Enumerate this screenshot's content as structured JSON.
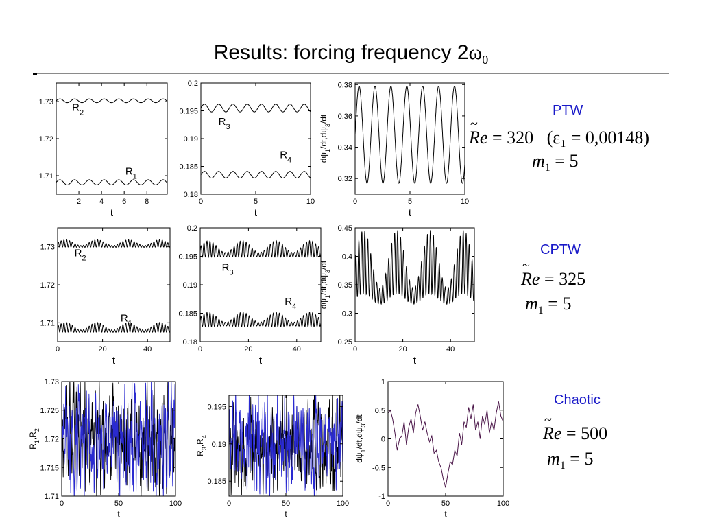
{
  "slide": {
    "title_text": "Results: forcing frequency 2",
    "title_symbol": "ω",
    "title_subscript": "0"
  },
  "regimes": [
    {
      "label": "PTW",
      "re_value": "320",
      "eps_text": "(ε₁ = 0,00148)",
      "m_value": "5"
    },
    {
      "label": "CPTW",
      "re_value": "325",
      "eps_text": "",
      "m_value": "5"
    },
    {
      "label": "Chaotic",
      "re_value": "500",
      "eps_text": "",
      "m_value": "5"
    }
  ],
  "eq_labels": {
    "re_symbol": "Re",
    "equals": "=",
    "m_symbol": "m",
    "m_sub": "1"
  },
  "colors": {
    "black_line": "#000000",
    "blue_line": "#2a2ad0",
    "purple_line": "#4a1548",
    "regime_label": "#1919c8"
  },
  "chart_data": [
    {
      "type": "line",
      "row": 1,
      "col": 1,
      "xlabel": "t",
      "ylabel": "",
      "xlim": [
        0,
        9.8
      ],
      "ylim": [
        1.705,
        1.735
      ],
      "xticks": [
        2,
        4,
        6,
        8
      ],
      "yticks": [
        1.71,
        1.72,
        1.73
      ],
      "ytick_labels": [
        "1.71",
        "1.72",
        "1.73"
      ],
      "series": [
        {
          "name": "R2",
          "color": "black",
          "kind": "sine",
          "center": 1.7302,
          "amp": 0.0005,
          "period": 1.3,
          "amp2": 0,
          "period2": 1
        },
        {
          "name": "R1",
          "color": "black",
          "kind": "sine",
          "center": 1.7082,
          "amp": 0.0007,
          "period": 1.3,
          "amp2": 0,
          "period2": 1
        }
      ],
      "annotations": [
        {
          "main": "R",
          "sub": "2",
          "x": 1.4,
          "y": 1.7275
        },
        {
          "main": "R",
          "sub": "1",
          "x": 6.1,
          "y": 1.7103
        }
      ]
    },
    {
      "type": "line",
      "row": 1,
      "col": 2,
      "xlabel": "t",
      "ylabel": "",
      "xlim": [
        0,
        10
      ],
      "ylim": [
        0.18,
        0.2
      ],
      "xticks": [
        0,
        5,
        10
      ],
      "yticks": [
        0.18,
        0.185,
        0.19,
        0.195,
        0.2
      ],
      "ytick_labels": [
        "0.18",
        "0.185",
        "0.19",
        "0.195",
        "0.2"
      ],
      "series": [
        {
          "name": "R3",
          "color": "black",
          "kind": "sine",
          "center": 0.1955,
          "amp": 0.0007,
          "period": 1.3,
          "amp2": 0,
          "period2": 1
        },
        {
          "name": "R4",
          "color": "black",
          "kind": "sine",
          "center": 0.1835,
          "amp": 0.0006,
          "period": 1.3,
          "amp2": 0,
          "period2": 1
        }
      ],
      "annotations": [
        {
          "main": "R",
          "sub": "3",
          "x": 1.6,
          "y": 0.1925
        },
        {
          "main": "R",
          "sub": "4",
          "x": 7.2,
          "y": 0.1865
        }
      ]
    },
    {
      "type": "line",
      "row": 1,
      "col": 3,
      "xlabel": "t",
      "ylabel": "dψ1/dt,dψ3/dt",
      "xlim": [
        0,
        10
      ],
      "ylim": [
        0.31,
        0.381
      ],
      "xticks": [
        0,
        5,
        10
      ],
      "yticks": [
        0.32,
        0.34,
        0.36,
        0.38
      ],
      "ytick_labels": [
        "0.32",
        "0.34",
        "0.36",
        "0.38"
      ],
      "series": [
        {
          "name": "",
          "color": "black",
          "kind": "sine",
          "center": 0.348,
          "amp": 0.031,
          "period": 1.45,
          "amp2": 0,
          "period2": 1
        }
      ],
      "annotations": []
    },
    {
      "type": "line",
      "row": 2,
      "col": 1,
      "xlabel": "t",
      "ylabel": "",
      "xlim": [
        0,
        50
      ],
      "ylim": [
        1.705,
        1.735
      ],
      "xticks": [
        0,
        20,
        40
      ],
      "yticks": [
        1.71,
        1.72,
        1.73
      ],
      "ytick_labels": [
        "1.71",
        "1.72",
        "1.73"
      ],
      "series": [
        {
          "name": "R2",
          "color": "black",
          "kind": "beat",
          "center": 1.7305,
          "amp": 0.0006,
          "period": 1.25,
          "amp2": 0.0004,
          "period2": 14
        },
        {
          "name": "R1",
          "color": "black",
          "kind": "beat",
          "center": 1.7083,
          "amp": 0.0008,
          "period": 1.25,
          "amp2": 0.0005,
          "period2": 14
        }
      ],
      "annotations": [
        {
          "main": "R",
          "sub": "2",
          "x": 7.5,
          "y": 1.7275
        },
        {
          "main": "R",
          "sub": "1",
          "x": 28,
          "y": 1.7103
        }
      ]
    },
    {
      "type": "line",
      "row": 2,
      "col": 2,
      "xlabel": "t",
      "ylabel": "",
      "xlim": [
        0,
        50
      ],
      "ylim": [
        0.18,
        0.2
      ],
      "xticks": [
        0,
        20,
        40
      ],
      "yticks": [
        0.18,
        0.185,
        0.19,
        0.195,
        0.2
      ],
      "ytick_labels": [
        "0.18",
        "0.185",
        "0.19",
        "0.195",
        "0.2"
      ],
      "series": [
        {
          "name": "R3",
          "color": "black",
          "kind": "beat",
          "center": 0.1958,
          "amp": 0.0009,
          "period": 1.25,
          "amp2": 0.0005,
          "period2": 14
        },
        {
          "name": "R4",
          "color": "black",
          "kind": "beat",
          "center": 0.1835,
          "amp": 0.0008,
          "period": 1.25,
          "amp2": 0.0004,
          "period2": 14
        }
      ],
      "annotations": [
        {
          "main": "R",
          "sub": "3",
          "x": 9,
          "y": 0.1925
        },
        {
          "main": "R",
          "sub": "4",
          "x": 35,
          "y": 0.1865
        }
      ]
    },
    {
      "type": "line",
      "row": 2,
      "col": 3,
      "xlabel": "t",
      "ylabel": "dψ1/dt,dψ3/dt",
      "xlim": [
        0,
        50
      ],
      "ylim": [
        0.25,
        0.45
      ],
      "xticks": [
        0,
        20,
        40
      ],
      "yticks": [
        0.25,
        0.3,
        0.35,
        0.4,
        0.45
      ],
      "ytick_labels": [
        "0.25",
        "0.3",
        "0.35",
        "0.4",
        "0.45"
      ],
      "series": [
        {
          "name": "",
          "color": "black",
          "kind": "beat",
          "center": 0.36,
          "amp": 0.035,
          "period": 1.25,
          "amp2": 0.03,
          "period2": 14
        }
      ],
      "annotations": []
    },
    {
      "type": "line",
      "row": 3,
      "col": 1,
      "xlabel": "t",
      "ylabel": "R1,R2",
      "xlim": [
        0,
        100
      ],
      "ylim": [
        1.71,
        1.73
      ],
      "xticks": [
        0,
        50,
        100
      ],
      "yticks": [
        1.71,
        1.715,
        1.72,
        1.725,
        1.73
      ],
      "ytick_labels": [
        "1.71",
        "1.715",
        "1.72",
        "1.725",
        "1.73"
      ],
      "series": [
        {
          "name": "",
          "color": "black",
          "kind": "chaos",
          "center": 1.72,
          "amp": 0.0085,
          "period": 3.2,
          "amp2": 0.002,
          "period2": 0.7
        },
        {
          "name": "",
          "color": "blue",
          "kind": "chaos",
          "center": 1.72,
          "amp": 0.0085,
          "period": 2.9,
          "amp2": 0.002,
          "period2": 0.8
        }
      ],
      "annotations": []
    },
    {
      "type": "line",
      "row": 3,
      "col": 2,
      "xlabel": "t",
      "ylabel": "R3,R4",
      "xlim": [
        0,
        100
      ],
      "ylim": [
        0.183,
        0.1965
      ],
      "xticks": [
        0,
        50,
        100
      ],
      "yticks": [
        0.185,
        0.19,
        0.195
      ],
      "ytick_labels": [
        "0.185",
        "0.19",
        "0.195"
      ],
      "series": [
        {
          "name": "",
          "color": "black",
          "kind": "chaos",
          "center": 0.19,
          "amp": 0.0058,
          "period": 3.1,
          "amp2": 0.0015,
          "period2": 0.7
        },
        {
          "name": "",
          "color": "blue",
          "kind": "chaos",
          "center": 0.19,
          "amp": 0.0058,
          "period": 2.8,
          "amp2": 0.0015,
          "period2": 0.8
        }
      ],
      "annotations": []
    },
    {
      "type": "line",
      "row": 3,
      "col": 3,
      "xlabel": "t",
      "ylabel": "dψ1/dt,dψ3/dt",
      "xlim": [
        0,
        100
      ],
      "ylim": [
        -1,
        1
      ],
      "xticks": [
        0,
        50,
        100
      ],
      "yticks": [
        -1,
        -0.5,
        0,
        0.5,
        1
      ],
      "ytick_labels": [
        "-1",
        "-0.5",
        "0",
        "0.5",
        "1"
      ],
      "series": [
        {
          "name": "",
          "color": "purple",
          "kind": "points",
          "x": [
            0,
            2,
            4,
            6,
            8,
            10,
            12,
            14,
            16,
            18,
            20,
            22,
            24,
            26,
            28,
            30,
            32,
            34,
            36,
            38,
            40,
            42,
            44,
            46,
            48,
            50,
            52,
            54,
            56,
            58,
            60,
            62,
            64,
            66,
            68,
            70,
            72,
            74,
            76,
            78,
            80,
            82,
            84,
            86,
            88,
            90,
            92,
            94,
            96,
            98,
            100
          ],
          "y": [
            0.45,
            0.5,
            0.35,
            0.1,
            -0.2,
            0.0,
            0.05,
            0.3,
            -0.1,
            0.2,
            0.35,
            0.1,
            0.45,
            0.6,
            0.4,
            0.15,
            0.3,
            0.1,
            -0.05,
            0.05,
            -0.25,
            -0.2,
            -0.4,
            -0.5,
            -0.7,
            -0.85,
            -0.6,
            -0.4,
            -0.45,
            -0.2,
            -0.3,
            0.1,
            -0.1,
            0.3,
            0.2,
            0.55,
            0.35,
            0.6,
            0.15,
            0.3,
            0.0,
            0.4,
            0.25,
            0.5,
            0.1,
            0.3,
            0.15,
            0.45,
            0.65,
            0.4,
            0.3
          ]
        }
      ],
      "annotations": []
    }
  ]
}
